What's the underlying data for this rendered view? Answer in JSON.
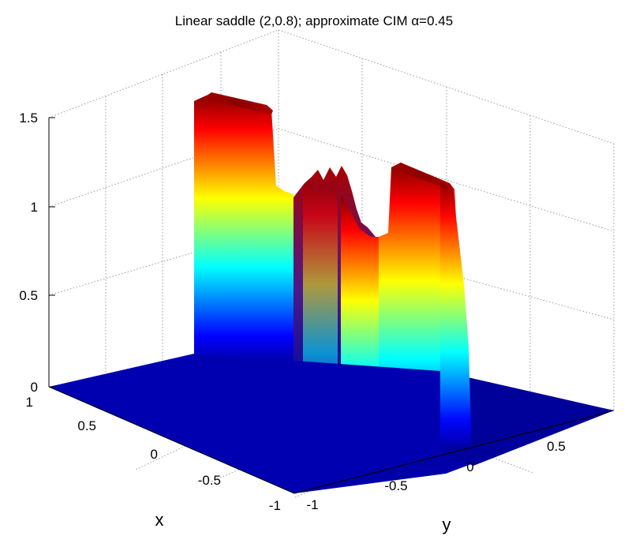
{
  "chart_data": {
    "type": "surface",
    "title": "Linear saddle (2,0.8); approximate CIM α=0.45",
    "xlabel": "x",
    "ylabel": "y",
    "zlabel": "",
    "xlim": [
      -1,
      1
    ],
    "ylim": [
      -1,
      1
    ],
    "zlim": [
      0,
      1.5
    ],
    "x_ticks": [
      "1",
      "0.5",
      "0",
      "-0.5",
      "-1"
    ],
    "y_ticks": [
      "-1",
      "-0.5",
      "0",
      "0.5"
    ],
    "z_ticks": [
      "0",
      "0.5",
      "1",
      "1.5"
    ],
    "grid": true,
    "colormap": "jet",
    "colormap_colors": [
      "#00008f",
      "#0000ff",
      "#00ffff",
      "#ffff00",
      "#ff0000",
      "#800000"
    ],
    "surface": {
      "x_min": -0.1,
      "x_max": 1.0,
      "y_min": -1.0,
      "y_max": 0.0,
      "description_samples": [
        {
          "y": -0.95,
          "z": 1.6
        },
        {
          "y": -0.75,
          "z": 1.5
        },
        {
          "y": -0.55,
          "z": 1.0
        },
        {
          "y": -0.45,
          "z": 1.2
        },
        {
          "y": -0.35,
          "z": 1.1
        },
        {
          "y": -0.25,
          "z": 0.95
        },
        {
          "y": -0.15,
          "z": 1.4
        },
        {
          "y": -0.05,
          "z": 1.5
        }
      ]
    }
  }
}
